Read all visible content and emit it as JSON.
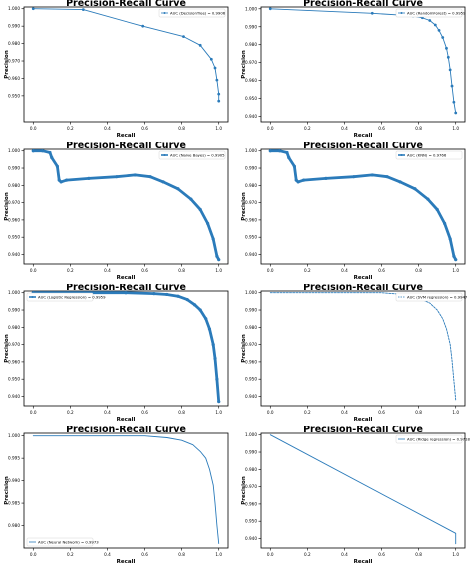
{
  "colors": {
    "line": "#2b7bba",
    "axis": "#000000",
    "background": "#ffffff"
  },
  "chart_data": [
    {
      "type": "line",
      "title": "Precision-Recall Curve",
      "xlabel": "Recall",
      "ylabel": "Precision",
      "legend": "upper right",
      "legend_label": "AUC (DecisionTree) = 0.9906",
      "line_style": "solid",
      "marker": "dot",
      "grid": false,
      "xlim": [
        -0.05,
        1.05
      ],
      "ylim": [
        0.935,
        1.001
      ],
      "xticks": [
        0.0,
        0.2,
        0.4,
        0.6,
        0.8,
        1.0
      ],
      "yticks": [
        0.95,
        0.96,
        0.97,
        0.98,
        0.99,
        1.0
      ],
      "x": [
        0.0,
        0.27,
        0.59,
        0.81,
        0.9,
        0.96,
        0.98,
        0.99,
        1.0,
        1.0
      ],
      "y": [
        1.0,
        0.9995,
        0.99,
        0.984,
        0.979,
        0.971,
        0.966,
        0.959,
        0.951,
        0.947
      ]
    },
    {
      "type": "line",
      "title": "Precision-Recall Curve",
      "xlabel": "Recall",
      "ylabel": "Precision",
      "legend": "upper right",
      "legend_label": "AUC (RandomForest) = 0.9959",
      "line_style": "solid",
      "marker": "dot",
      "grid": false,
      "xlim": [
        -0.05,
        1.05
      ],
      "ylim": [
        0.937,
        1.001
      ],
      "xticks": [
        0.0,
        0.2,
        0.4,
        0.6,
        0.8,
        1.0
      ],
      "yticks": [
        0.94,
        0.95,
        0.96,
        0.97,
        0.98,
        0.99,
        1.0
      ],
      "x": [
        0.0,
        0.55,
        0.7,
        0.77,
        0.82,
        0.86,
        0.89,
        0.91,
        0.93,
        0.95,
        0.96,
        0.97,
        0.98,
        0.99,
        1.0
      ],
      "y": [
        1.0,
        0.9975,
        0.9965,
        0.996,
        0.995,
        0.9935,
        0.991,
        0.988,
        0.984,
        0.978,
        0.973,
        0.966,
        0.957,
        0.948,
        0.942
      ]
    },
    {
      "type": "line",
      "title": "Precision-Recall Curve",
      "xlabel": "Recall",
      "ylabel": "Precision",
      "legend": "upper right",
      "legend_label": "AUC (Naive Bayes) = 0.9905",
      "line_style": "thick",
      "marker": "dot",
      "grid": false,
      "xlim": [
        -0.05,
        1.05
      ],
      "ylim": [
        0.9345,
        1.001
      ],
      "xticks": [
        0.0,
        0.2,
        0.4,
        0.6,
        0.8,
        1.0
      ],
      "yticks": [
        0.94,
        0.95,
        0.96,
        0.97,
        0.98,
        0.99,
        1.0
      ],
      "x": [
        0.0,
        0.05,
        0.09,
        0.1,
        0.13,
        0.14,
        0.15,
        0.18,
        0.3,
        0.45,
        0.55,
        0.63,
        0.7,
        0.78,
        0.85,
        0.9,
        0.94,
        0.97,
        0.99,
        1.0
      ],
      "y": [
        1.0,
        1.0,
        0.999,
        0.996,
        0.991,
        0.983,
        0.982,
        0.983,
        0.984,
        0.985,
        0.986,
        0.985,
        0.982,
        0.978,
        0.972,
        0.966,
        0.958,
        0.949,
        0.939,
        0.937
      ]
    },
    {
      "type": "line",
      "title": "Precision-Recall Curve",
      "xlabel": "Recall",
      "ylabel": "Precision",
      "legend": "upper right",
      "legend_label": "AUC (KNN) = 0.9766",
      "line_style": "thick",
      "marker": "dot",
      "grid": false,
      "xlim": [
        -0.05,
        1.05
      ],
      "ylim": [
        0.9345,
        1.001
      ],
      "xticks": [
        0.0,
        0.2,
        0.4,
        0.6,
        0.8,
        1.0
      ],
      "yticks": [
        0.94,
        0.95,
        0.96,
        0.97,
        0.98,
        0.99,
        1.0
      ],
      "x": [
        0.0,
        0.05,
        0.09,
        0.1,
        0.13,
        0.14,
        0.15,
        0.18,
        0.3,
        0.45,
        0.55,
        0.63,
        0.7,
        0.78,
        0.85,
        0.9,
        0.94,
        0.97,
        0.99,
        1.0
      ],
      "y": [
        1.0,
        1.0,
        0.999,
        0.996,
        0.991,
        0.983,
        0.982,
        0.983,
        0.984,
        0.985,
        0.986,
        0.985,
        0.982,
        0.978,
        0.972,
        0.966,
        0.958,
        0.949,
        0.939,
        0.937
      ]
    },
    {
      "type": "line",
      "title": "Precision-Recall Curve",
      "xlabel": "Recall",
      "ylabel": "Precision",
      "legend": "upper left",
      "legend_label": "AUC (Logistic Regression) = 0.9959",
      "line_style": "thick",
      "marker": "dot",
      "grid": false,
      "xlim": [
        -0.05,
        1.05
      ],
      "ylim": [
        0.9345,
        1.001
      ],
      "xticks": [
        0.0,
        0.2,
        0.4,
        0.6,
        0.8,
        1.0
      ],
      "yticks": [
        0.94,
        0.95,
        0.96,
        0.97,
        0.98,
        0.99,
        1.0
      ],
      "x": [
        0.0,
        0.5,
        0.65,
        0.72,
        0.78,
        0.83,
        0.87,
        0.9,
        0.93,
        0.95,
        0.97,
        0.98,
        0.99,
        1.0
      ],
      "y": [
        1.0,
        1.0,
        0.9995,
        0.999,
        0.998,
        0.996,
        0.993,
        0.99,
        0.985,
        0.979,
        0.97,
        0.962,
        0.95,
        0.937
      ]
    },
    {
      "type": "line",
      "title": "Precision-Recall Curve",
      "xlabel": "Recall",
      "ylabel": "Precision",
      "legend": "upper right",
      "legend_label": "AUC (SVM regression) = 0.9947",
      "line_style": "dashed",
      "marker": "none",
      "grid": false,
      "xlim": [
        -0.05,
        1.05
      ],
      "ylim": [
        0.9345,
        1.001
      ],
      "xticks": [
        0.0,
        0.2,
        0.4,
        0.6,
        0.8,
        1.0
      ],
      "yticks": [
        0.94,
        0.95,
        0.96,
        0.97,
        0.98,
        0.99,
        1.0
      ],
      "x": [
        0.0,
        0.6,
        0.72,
        0.8,
        0.86,
        0.9,
        0.93,
        0.95,
        0.97,
        0.98,
        0.99,
        1.0
      ],
      "y": [
        1.0,
        1.0,
        0.999,
        0.997,
        0.994,
        0.99,
        0.985,
        0.979,
        0.97,
        0.961,
        0.949,
        0.938
      ]
    },
    {
      "type": "line",
      "title": "Precision-Recall Curve",
      "xlabel": "Recall",
      "ylabel": "Precision",
      "legend": "lower left",
      "legend_label": "AUC (Neural Network) = 0.9973",
      "line_style": "solid",
      "marker": "none",
      "grid": false,
      "xlim": [
        -0.05,
        1.05
      ],
      "ylim": [
        0.975,
        1.0006
      ],
      "xticks": [
        0.0,
        0.2,
        0.4,
        0.6,
        0.8,
        1.0
      ],
      "yticks": [
        0.98,
        0.985,
        0.99,
        0.995,
        1.0
      ],
      "x": [
        0.0,
        0.6,
        0.72,
        0.8,
        0.86,
        0.9,
        0.93,
        0.95,
        0.97,
        0.98,
        0.99,
        1.0
      ],
      "y": [
        1.0,
        1.0,
        0.9996,
        0.999,
        0.998,
        0.9965,
        0.995,
        0.9925,
        0.989,
        0.985,
        0.98,
        0.976
      ]
    },
    {
      "type": "line",
      "title": "Precision-Recall Curve",
      "xlabel": "Recall",
      "ylabel": "Precision",
      "legend": "upper right",
      "legend_label": "AUC (Ridge regression) = 0.9718",
      "line_style": "solid",
      "marker": "none",
      "grid": false,
      "xlim": [
        -0.05,
        1.05
      ],
      "ylim": [
        0.9345,
        1.001
      ],
      "xticks": [
        0.0,
        0.2,
        0.4,
        0.6,
        0.8,
        1.0
      ],
      "yticks": [
        0.94,
        0.95,
        0.96,
        0.97,
        0.98,
        0.99,
        1.0
      ],
      "x": [
        0.0,
        1.0,
        1.0
      ],
      "y": [
        1.0,
        0.943,
        0.937
      ]
    }
  ]
}
